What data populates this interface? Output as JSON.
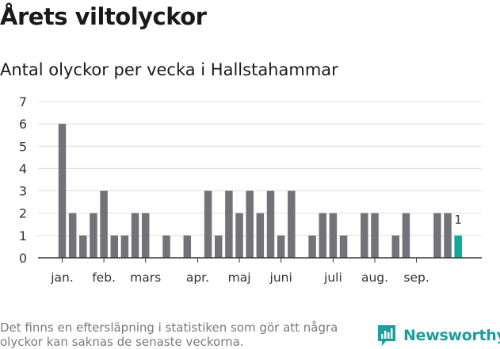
{
  "title": "Årets viltolyckor",
  "subtitle": "Antal olyckor per vecka i Hallstahammar",
  "note": "Det finns en eftersläpning i statistiken som gör att några olyckor kan saknas de senaste veckorna.",
  "brand": "Newsworthy",
  "colors": {
    "bar": "#737278",
    "highlight": "#0ea99b",
    "grid": "#dddddd",
    "axis": "#333333",
    "brand": "#1c9e9e"
  },
  "chart_data": {
    "type": "bar",
    "title": "Antal olyckor per vecka i Hallstahammar",
    "xlabel": "",
    "ylabel": "",
    "ylim": [
      0,
      7
    ],
    "yticks": [
      0,
      1,
      2,
      3,
      4,
      5,
      6,
      7
    ],
    "grid": true,
    "x_unit": "week",
    "month_labels": [
      {
        "label": "jan.",
        "week": 1
      },
      {
        "label": "feb.",
        "week": 5
      },
      {
        "label": "mars",
        "week": 9
      },
      {
        "label": "apr.",
        "week": 14
      },
      {
        "label": "maj",
        "week": 18
      },
      {
        "label": "juni",
        "week": 22
      },
      {
        "label": "juli",
        "week": 27
      },
      {
        "label": "aug.",
        "week": 31
      },
      {
        "label": "sep.",
        "week": 35
      }
    ],
    "weeks": [
      1,
      2,
      3,
      4,
      5,
      6,
      7,
      8,
      9,
      10,
      11,
      12,
      13,
      14,
      15,
      16,
      17,
      18,
      19,
      20,
      21,
      22,
      23,
      24,
      25,
      26,
      27,
      28,
      29,
      30,
      31,
      32,
      33,
      34,
      35,
      36,
      37,
      38,
      39
    ],
    "values": [
      6,
      2,
      1,
      2,
      3,
      1,
      1,
      2,
      2,
      0,
      1,
      0,
      1,
      0,
      3,
      1,
      3,
      2,
      3,
      2,
      3,
      1,
      3,
      0,
      1,
      2,
      2,
      1,
      0,
      2,
      2,
      0,
      1,
      2,
      0,
      0,
      2,
      2,
      1
    ],
    "highlight": {
      "week": 39,
      "value": 1,
      "label": "1"
    }
  }
}
